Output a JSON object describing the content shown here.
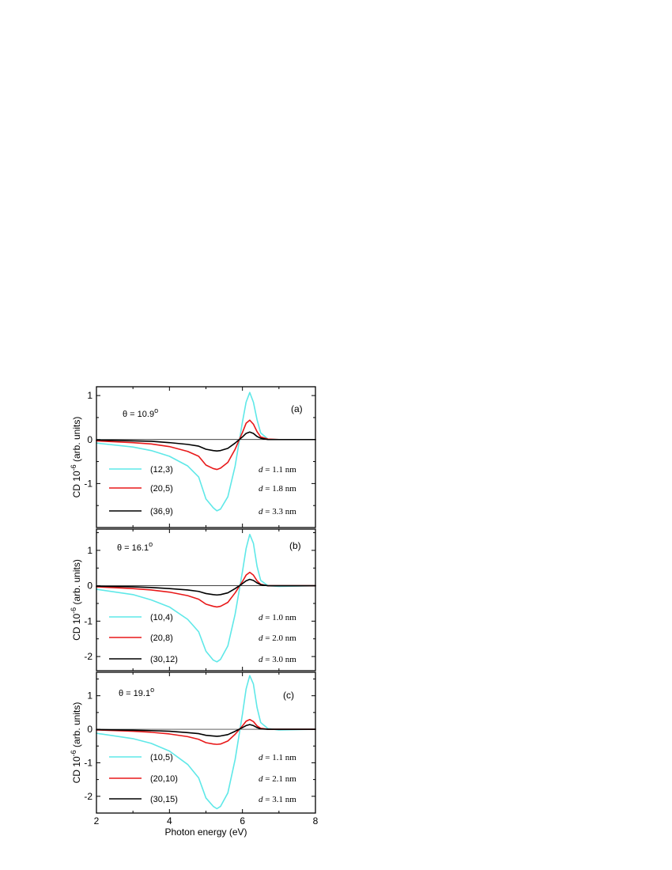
{
  "chart_data": [
    {
      "type": "line",
      "panel_label": "(a)",
      "theta_text": "θ = 10.9",
      "theta_sup": "o",
      "xlabel": "",
      "ylabel": "CD 10",
      "ylabel_sup": "-6",
      "ylabel_tail": " (arb. units)",
      "xlim": [
        2,
        8
      ],
      "ylim": [
        -2.0,
        1.2
      ],
      "xticks": [
        2,
        4,
        6,
        8
      ],
      "yticks": [
        1,
        0,
        -1
      ],
      "zero_line": true,
      "legend_position": "bottom-left",
      "series": [
        {
          "name": "(12,3)",
          "color": "#5fe8e8",
          "d_label": "d = 1.1 nm",
          "x": [
            2.0,
            3.0,
            3.5,
            4.0,
            4.5,
            4.8,
            5.0,
            5.2,
            5.3,
            5.4,
            5.6,
            5.8,
            6.0,
            6.1,
            6.2,
            6.3,
            6.4,
            6.5,
            6.7,
            7.0,
            8.0
          ],
          "y": [
            -0.08,
            -0.17,
            -0.25,
            -0.38,
            -0.6,
            -0.85,
            -1.35,
            -1.55,
            -1.62,
            -1.58,
            -1.3,
            -0.6,
            0.4,
            0.85,
            1.07,
            0.85,
            0.45,
            0.15,
            0.01,
            0.0,
            0.0
          ]
        },
        {
          "name": "(20,5)",
          "color": "#e8191a",
          "d_label": "d = 1.8 nm",
          "x": [
            2.0,
            3.0,
            3.5,
            4.0,
            4.5,
            4.8,
            5.0,
            5.2,
            5.3,
            5.4,
            5.6,
            5.8,
            6.0,
            6.1,
            6.2,
            6.3,
            6.4,
            6.5,
            6.7,
            7.0,
            8.0
          ],
          "y": [
            -0.03,
            -0.07,
            -0.1,
            -0.16,
            -0.27,
            -0.38,
            -0.58,
            -0.66,
            -0.68,
            -0.65,
            -0.52,
            -0.22,
            0.16,
            0.37,
            0.44,
            0.35,
            0.18,
            0.06,
            0.01,
            0.0,
            0.0
          ]
        },
        {
          "name": "(36,9)",
          "color": "#000000",
          "d_label": "d = 3.3 nm",
          "x": [
            2.0,
            3.0,
            3.5,
            4.0,
            4.5,
            4.8,
            5.0,
            5.2,
            5.3,
            5.4,
            5.6,
            5.8,
            6.0,
            6.1,
            6.2,
            6.3,
            6.4,
            6.5,
            6.7,
            7.0,
            8.0
          ],
          "y": [
            -0.01,
            -0.03,
            -0.04,
            -0.07,
            -0.11,
            -0.15,
            -0.22,
            -0.25,
            -0.26,
            -0.25,
            -0.2,
            -0.08,
            0.06,
            0.14,
            0.17,
            0.14,
            0.07,
            0.03,
            0.0,
            0.0,
            0.0
          ]
        }
      ]
    },
    {
      "type": "line",
      "panel_label": "(b)",
      "theta_text": "θ = 16.1",
      "theta_sup": "o",
      "xlabel": "",
      "ylabel": "CD 10",
      "ylabel_sup": "-6",
      "ylabel_tail": " (arb. units)",
      "xlim": [
        2,
        8
      ],
      "ylim": [
        -2.4,
        1.6
      ],
      "xticks": [
        2,
        4,
        6,
        8
      ],
      "yticks": [
        1,
        0,
        -1,
        -2
      ],
      "zero_line": true,
      "legend_position": "bottom-left",
      "series": [
        {
          "name": "(10,4)",
          "color": "#5fe8e8",
          "d_label": "d = 1.0 nm",
          "x": [
            2.0,
            3.0,
            3.5,
            4.0,
            4.5,
            4.8,
            5.0,
            5.2,
            5.3,
            5.4,
            5.6,
            5.8,
            6.0,
            6.1,
            6.2,
            6.3,
            6.4,
            6.5,
            6.7,
            7.0,
            8.0
          ],
          "y": [
            -0.1,
            -0.25,
            -0.4,
            -0.6,
            -0.95,
            -1.3,
            -1.85,
            -2.1,
            -2.15,
            -2.08,
            -1.7,
            -0.8,
            0.4,
            1.05,
            1.45,
            1.2,
            0.55,
            0.15,
            0.0,
            -0.02,
            0.0
          ]
        },
        {
          "name": "(20,8)",
          "color": "#e8191a",
          "d_label": "d = 2.0 nm",
          "x": [
            2.0,
            3.0,
            3.5,
            4.0,
            4.5,
            4.8,
            5.0,
            5.2,
            5.3,
            5.4,
            5.6,
            5.8,
            6.0,
            6.1,
            6.2,
            6.3,
            6.4,
            6.5,
            6.7,
            7.0,
            8.0
          ],
          "y": [
            -0.03,
            -0.08,
            -0.12,
            -0.18,
            -0.28,
            -0.38,
            -0.52,
            -0.58,
            -0.6,
            -0.58,
            -0.47,
            -0.2,
            0.12,
            0.3,
            0.38,
            0.3,
            0.14,
            0.04,
            0.0,
            0.0,
            0.0
          ]
        },
        {
          "name": "(30,12)",
          "color": "#000000",
          "d_label": "d = 3.0 nm",
          "x": [
            2.0,
            3.0,
            3.5,
            4.0,
            4.5,
            4.8,
            5.0,
            5.2,
            5.3,
            5.4,
            5.6,
            5.8,
            6.0,
            6.1,
            6.2,
            6.3,
            6.4,
            6.5,
            6.7,
            7.0,
            8.0
          ],
          "y": [
            -0.01,
            -0.03,
            -0.05,
            -0.08,
            -0.12,
            -0.16,
            -0.22,
            -0.25,
            -0.26,
            -0.25,
            -0.2,
            -0.08,
            0.06,
            0.14,
            0.18,
            0.15,
            0.08,
            0.03,
            0.0,
            0.0,
            0.0
          ]
        }
      ]
    },
    {
      "type": "line",
      "panel_label": "(c)",
      "theta_text": "θ = 19.1",
      "theta_sup": "o",
      "xlabel": "Photon energy (eV)",
      "ylabel": "CD 10",
      "ylabel_sup": "-6",
      "ylabel_tail": " (arb. units)",
      "xlim": [
        2,
        8
      ],
      "ylim": [
        -2.5,
        1.7
      ],
      "xticks": [
        2,
        4,
        6,
        8
      ],
      "yticks": [
        1,
        0,
        -1,
        -2
      ],
      "zero_line": true,
      "legend_position": "bottom-left",
      "series": [
        {
          "name": "(10,5)",
          "color": "#5fe8e8",
          "d_label": "d = 1.1 nm",
          "x": [
            2.0,
            3.0,
            3.5,
            4.0,
            4.5,
            4.8,
            5.0,
            5.2,
            5.3,
            5.4,
            5.6,
            5.8,
            6.0,
            6.1,
            6.2,
            6.3,
            6.4,
            6.5,
            6.7,
            7.0,
            8.0
          ],
          "y": [
            -0.12,
            -0.28,
            -0.42,
            -0.65,
            -1.05,
            -1.45,
            -2.05,
            -2.3,
            -2.37,
            -2.3,
            -1.9,
            -0.9,
            0.45,
            1.2,
            1.6,
            1.35,
            0.65,
            0.2,
            0.02,
            -0.02,
            0.0
          ]
        },
        {
          "name": "(20,10)",
          "color": "#e8191a",
          "d_label": "d = 2.1 nm",
          "x": [
            2.0,
            3.0,
            3.5,
            4.0,
            4.5,
            4.8,
            5.0,
            5.2,
            5.3,
            5.4,
            5.6,
            5.8,
            6.0,
            6.1,
            6.2,
            6.3,
            6.4,
            6.5,
            6.7,
            7.0,
            8.0
          ],
          "y": [
            -0.02,
            -0.06,
            -0.09,
            -0.14,
            -0.22,
            -0.3,
            -0.4,
            -0.44,
            -0.45,
            -0.44,
            -0.35,
            -0.15,
            0.1,
            0.24,
            0.29,
            0.23,
            0.1,
            0.03,
            0.0,
            0.0,
            0.0
          ]
        },
        {
          "name": "(30,15)",
          "color": "#000000",
          "d_label": "d = 3.1 nm",
          "x": [
            2.0,
            3.0,
            3.5,
            4.0,
            4.5,
            4.8,
            5.0,
            5.2,
            5.3,
            5.4,
            5.6,
            5.8,
            6.0,
            6.1,
            6.2,
            6.3,
            6.4,
            6.5,
            6.7,
            7.0,
            8.0
          ],
          "y": [
            -0.01,
            -0.03,
            -0.04,
            -0.06,
            -0.1,
            -0.13,
            -0.18,
            -0.2,
            -0.21,
            -0.2,
            -0.16,
            -0.06,
            0.05,
            0.11,
            0.14,
            0.11,
            0.05,
            0.01,
            0.0,
            0.0,
            0.0
          ]
        }
      ]
    }
  ]
}
